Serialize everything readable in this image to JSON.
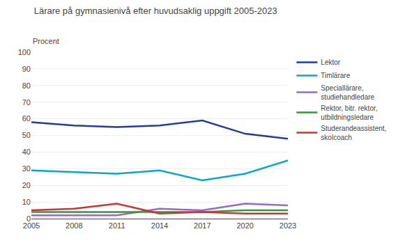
{
  "chart_data": {
    "type": "line",
    "title": "Lärare på gymnasienivå efter huvudsaklig uppgift 2005-2023",
    "y_label": "Procent",
    "x": [
      2005,
      2008,
      2011,
      2014,
      2017,
      2020,
      2023
    ],
    "series": [
      {
        "name": "Lektor",
        "color": "#1f3d99",
        "values": [
          58,
          56,
          55,
          56,
          59,
          51,
          48
        ]
      },
      {
        "name": "Timlärare",
        "color": "#00aacc",
        "values": [
          29,
          28,
          27,
          29,
          23,
          27,
          35
        ]
      },
      {
        "name": "Speciallärare,\nstudiehandledare",
        "color": "#9966cc",
        "values": [
          2,
          2,
          2,
          6,
          5,
          9,
          8
        ]
      },
      {
        "name": "Rektor, bitr. rektor,\nutbildningsledare",
        "color": "#339933",
        "values": [
          4,
          4,
          4,
          4,
          4,
          5,
          5
        ]
      },
      {
        "name": "Studerandeassistent,\nskolcoach",
        "color": "#cc3333",
        "values": [
          5,
          6,
          9,
          3,
          4,
          3,
          3
        ]
      }
    ],
    "xlim": [
      2005,
      2023
    ],
    "xticks": [
      2005,
      2008,
      2011,
      2014,
      2017,
      2020,
      2023
    ],
    "ylim": [
      0,
      100
    ],
    "yticks": [
      0,
      10,
      20,
      30,
      40,
      50,
      60,
      70,
      80,
      90,
      100
    ],
    "grid": true,
    "legend": "right"
  }
}
